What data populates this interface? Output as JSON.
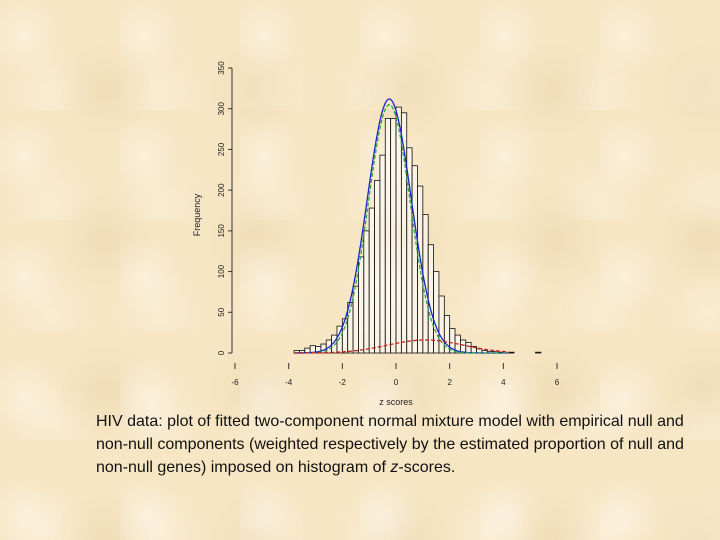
{
  "chart_data": {
    "type": "bar",
    "xlabel": "z scores",
    "ylabel": "Frequency",
    "xlim": [
      -6,
      6
    ],
    "ylim": [
      0,
      350
    ],
    "x_ticks": [
      {
        "value": -6,
        "label": "-6"
      },
      {
        "value": -4,
        "label": "-4"
      },
      {
        "value": -2,
        "label": "-2"
      },
      {
        "value": 0,
        "label": "0"
      },
      {
        "value": 2,
        "label": "2"
      },
      {
        "value": 4,
        "label": "4"
      },
      {
        "value": 6,
        "label": "6"
      }
    ],
    "y_ticks": [
      0,
      50,
      100,
      150,
      200,
      250,
      300,
      350
    ],
    "bin_width": 0.2,
    "bins": [
      [
        -3.8,
        3
      ],
      [
        -3.6,
        3
      ],
      [
        -3.4,
        6
      ],
      [
        -3.2,
        9
      ],
      [
        -3.0,
        8
      ],
      [
        -2.8,
        11
      ],
      [
        -2.6,
        16
      ],
      [
        -2.4,
        22
      ],
      [
        -2.2,
        33
      ],
      [
        -2.0,
        42
      ],
      [
        -1.8,
        62
      ],
      [
        -1.6,
        82
      ],
      [
        -1.4,
        118
      ],
      [
        -1.2,
        150
      ],
      [
        -1.0,
        178
      ],
      [
        -0.8,
        212
      ],
      [
        -0.6,
        243
      ],
      [
        -0.4,
        288
      ],
      [
        -0.2,
        288
      ],
      [
        0.0,
        302
      ],
      [
        0.2,
        295
      ],
      [
        0.4,
        252
      ],
      [
        0.6,
        230
      ],
      [
        0.8,
        205
      ],
      [
        1.0,
        170
      ],
      [
        1.2,
        133
      ],
      [
        1.4,
        100
      ],
      [
        1.6,
        70
      ],
      [
        1.8,
        46
      ],
      [
        2.0,
        30
      ],
      [
        2.2,
        22
      ],
      [
        2.4,
        16
      ],
      [
        2.6,
        13
      ],
      [
        2.8,
        8
      ],
      [
        3.0,
        5
      ],
      [
        3.2,
        3
      ],
      [
        3.4,
        2
      ],
      [
        3.6,
        2
      ],
      [
        3.8,
        1
      ],
      [
        4.2,
        1
      ],
      [
        5.2,
        1
      ]
    ],
    "curves": [
      {
        "role": "mixture",
        "color": "#2222cc",
        "style": "solid",
        "weight": 1.0,
        "mean": -0.25,
        "sd": 0.82,
        "peak": 312
      },
      {
        "role": "null",
        "color": "#22aa44",
        "style": "dashed",
        "weight": 1.0,
        "mean": -0.25,
        "sd": 0.78,
        "peak": 305
      },
      {
        "role": "non-null",
        "color": "#cc2222",
        "style": "dashed",
        "weight": 1.0,
        "mean": 1.1,
        "sd": 1.4,
        "peak": 16
      }
    ],
    "colors": {
      "bar_stroke": "#111111",
      "bar_fill": "#ffffff",
      "axis": "#333333"
    }
  },
  "caption": {
    "prefix": "HIV data: plot of fitted two-component normal mixture model with empirical null and non-null components (weighted respectively by the estimated proportion of null and non-null genes) imposed on histogram of ",
    "emph": "z",
    "suffix": "-scores."
  }
}
